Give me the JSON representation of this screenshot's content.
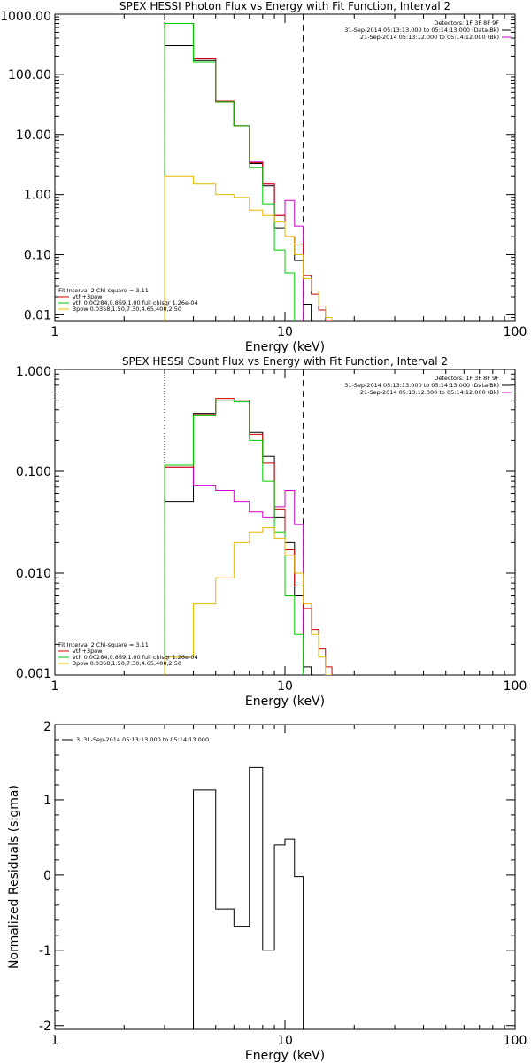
{
  "chart_data": [
    {
      "type": "line",
      "title": "SPEX HESSI Photon Flux vs Energy with Fit Function, Interval 2",
      "xlabel": "Energy (keV)",
      "ylabel": "",
      "xscale": "log",
      "yscale": "log",
      "xlim": [
        1,
        100
      ],
      "ylim": [
        0.008,
        1000
      ],
      "x_ticks": [
        "1",
        "10",
        "100"
      ],
      "y_ticks": [
        "1000.00",
        "100.00",
        "10.00",
        "1.00",
        "0.10",
        "0.01"
      ],
      "edges": [
        3.0,
        4.0,
        5.0,
        6.0,
        7.0,
        8.0,
        9.0,
        10.0,
        11.0,
        12.0,
        13.0,
        14.0,
        15.0,
        16.0,
        17.0,
        18.0
      ],
      "series": [
        {
          "name": "31-Sep-2014 05:13:13.000 to 05:14:13.000 (Data-Bk)",
          "color": "#000000",
          "values": [
            300,
            170,
            35,
            14,
            3.3,
            1.4,
            0.28,
            0.2,
            0.08,
            0.015,
            null,
            null,
            null,
            null,
            null
          ]
        },
        {
          "name": "21-Sep-2014 05:13:12.000 to 05:14:12.000 (Bk)",
          "color": "#cc00cc",
          "values": [
            700,
            180,
            35,
            14,
            3.5,
            1.5,
            0.45,
            0.8,
            0.3,
            null,
            null,
            null,
            null,
            null,
            null
          ]
        },
        {
          "name": "vth+3pow",
          "color": "#cc0000",
          "values": [
            700,
            180,
            36,
            14,
            3.4,
            1.5,
            0.45,
            0.2,
            0.15,
            0.045,
            0.022,
            0.012,
            0.007,
            null,
            null
          ]
        },
        {
          "name": "vth 0.00284,0.869,1.00  full chisqr 1.26e-04",
          "color": "#00cc00",
          "values": [
            700,
            160,
            35,
            14,
            2.8,
            0.7,
            0.12,
            0.05,
            null,
            null,
            null,
            null,
            null,
            null,
            null
          ]
        },
        {
          "name": "3pow 0.0358,1.50,7.30,4.65,400,2.50",
          "color": "#e6b800",
          "values": [
            2.0,
            1.5,
            1.0,
            0.9,
            0.55,
            0.45,
            0.35,
            0.2,
            0.1,
            0.04,
            0.025,
            0.014,
            0.009,
            null,
            null
          ]
        }
      ],
      "vlines": [
        {
          "x": 3.0,
          "style": "dotted",
          "color": "#000000"
        },
        {
          "x": 12.0,
          "style": "dashed",
          "color": "#000000"
        }
      ],
      "legend_lines": [
        {
          "text": "Detectors: 1F 3F 8F 9F"
        },
        {
          "text": "31-Sep-2014 05:13:13.000 to 05:14:13.000 (Data-Bk)",
          "color": "#000000"
        },
        {
          "text": "21-Sep-2014 05:13:12.000 to 05:14:12.000 (Bk)",
          "color": "#cc00cc"
        }
      ],
      "fit_legend": [
        {
          "text": "Fit Interval 2   Chi-square = 3.11"
        },
        {
          "text": "vth+3pow",
          "color": "#cc0000"
        },
        {
          "text": "vth 0.00284,0.869,1.00  full chisqr 1.26e-04",
          "color": "#00cc00"
        },
        {
          "text": "3pow 0.0358,1.50,7.30,4.65,400,2.50",
          "color": "#e6b800"
        }
      ],
      "grid": false,
      "legend_position": "top-right"
    },
    {
      "type": "line",
      "title": "SPEX HESSI Count Flux vs Energy with Fit Function, Interval 2",
      "xlabel": "Energy (keV)",
      "ylabel": "",
      "xscale": "log",
      "yscale": "log",
      "xlim": [
        1,
        100
      ],
      "ylim": [
        0.001,
        1
      ],
      "x_ticks": [
        "1",
        "10",
        "100"
      ],
      "y_ticks": [
        "1.000",
        "0.100",
        "0.010",
        "0.001"
      ],
      "edges": [
        3.0,
        4.0,
        5.0,
        6.0,
        7.0,
        8.0,
        9.0,
        10.0,
        11.0,
        12.0,
        13.0,
        14.0,
        15.0,
        16.0,
        17.0,
        18.0
      ],
      "series": [
        {
          "name": "31-Sep-2014 05:13:13.000 to 05:14:13.000 (Data-Bk)",
          "color": "#000000",
          "values": [
            0.05,
            0.37,
            0.5,
            0.5,
            0.24,
            0.14,
            0.035,
            0.02,
            0.006,
            0.0012,
            null,
            null,
            null,
            null,
            null
          ]
        },
        {
          "name": "21-Sep-2014 05:13:12.000 to 05:14:12.000 (Bk)",
          "color": "#cc00cc",
          "values": [
            0.11,
            0.072,
            0.065,
            0.05,
            0.04,
            0.035,
            0.045,
            0.065,
            0.03,
            null,
            null,
            null,
            null,
            null,
            null
          ]
        },
        {
          "name": "vth+3pow",
          "color": "#cc0000",
          "values": [
            0.11,
            0.36,
            0.52,
            0.5,
            0.23,
            0.12,
            0.042,
            0.017,
            0.0075,
            0.0045,
            0.0028,
            0.0018,
            0.0012,
            null,
            null
          ]
        },
        {
          "name": "vth 0.00284,0.869,1.00  full chisqr 1.26e-04",
          "color": "#00cc00",
          "values": [
            0.115,
            0.35,
            0.5,
            0.48,
            0.2,
            0.08,
            0.025,
            0.006,
            0.0025,
            null,
            null,
            null,
            null,
            null,
            null
          ]
        },
        {
          "name": "3pow 0.0358,1.50,7.30,4.65,400,2.50",
          "color": "#e6b800",
          "values": [
            0.0015,
            0.005,
            0.009,
            0.02,
            0.025,
            0.028,
            0.022,
            0.015,
            0.01,
            0.005,
            0.0025,
            0.0015,
            0.001,
            null,
            null
          ]
        }
      ],
      "vlines": [
        {
          "x": 3.0,
          "style": "dotted",
          "color": "#000000"
        },
        {
          "x": 12.0,
          "style": "dashed",
          "color": "#000000"
        }
      ],
      "legend_lines": [
        {
          "text": "Detectors: 1F 3F 8F 9F"
        },
        {
          "text": "31-Sep-2014 05:13:13.000 to 05:14:13.000 (Data-Bk)",
          "color": "#000000"
        },
        {
          "text": "21-Sep-2014 05:13:12.000 to 05:14:12.000 (Bk)",
          "color": "#cc00cc"
        }
      ],
      "fit_legend": [
        {
          "text": "Fit Interval 2   Chi-square = 3.11"
        },
        {
          "text": "vth+3pow",
          "color": "#cc0000"
        },
        {
          "text": "vth 0.00284,0.869,1.00  full chisqr 1.26e-04",
          "color": "#00cc00"
        },
        {
          "text": "3pow 0.0358,1.50,7.30,4.65,400,2.50",
          "color": "#e6b800"
        }
      ],
      "grid": false,
      "legend_position": "top-right"
    },
    {
      "type": "line",
      "title": "",
      "xlabel": "Energy (keV)",
      "ylabel": "Normalized Residuals (sigma)",
      "xscale": "log",
      "yscale": "linear",
      "xlim": [
        1,
        100
      ],
      "ylim": [
        -2.05,
        2
      ],
      "x_ticks": [
        "1",
        "10",
        "100"
      ],
      "y_ticks": [
        "2",
        "1",
        "0",
        "-1",
        "-2"
      ],
      "edges": [
        3.0,
        4.0,
        5.0,
        6.0,
        7.0,
        8.0,
        9.0,
        10.0,
        11.0,
        12.0
      ],
      "series": [
        {
          "name": "3. 31-Sep-2014 05:13:13.000 to 05:14:13.000",
          "color": "#000000",
          "values": [
            -2.05,
            1.13,
            -0.45,
            -0.68,
            1.43,
            -1.0,
            0.4,
            0.48,
            -0.02
          ]
        }
      ],
      "legend_lines": [
        {
          "text": "3. 31-Sep-2014 05:13:13.000 to 05:14:13.000",
          "color": "#000000"
        }
      ],
      "grid": false,
      "legend_position": "top-left"
    }
  ]
}
